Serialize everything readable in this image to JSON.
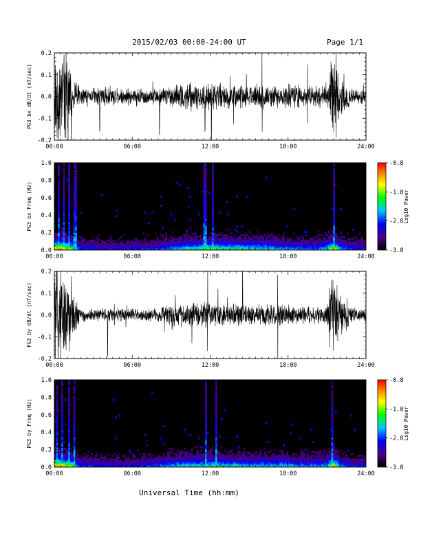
{
  "header": {
    "title": "2015/02/03  00:00-24:00 UT",
    "page": "Page 1/1"
  },
  "footer": {
    "xlabel": "Universal Time (hh:mm)"
  },
  "chart_data": [
    {
      "type": "line",
      "ylabel": "PG3 bx dB/dt (nT/sec)",
      "ylim": [
        -0.2,
        0.2
      ],
      "y_ticks": [
        "-0.2",
        "-0.1",
        "0.0",
        "0.1",
        "0.2"
      ],
      "xlim": [
        "00:00",
        "24:00"
      ],
      "x_ticks": [
        "00:00",
        "06:00",
        "12:00",
        "18:00",
        "24:00"
      ],
      "envelope": {
        "t_hours": [
          0,
          0.5,
          1,
          1.5,
          2,
          3,
          4,
          5,
          6,
          7,
          8,
          9,
          10,
          11,
          12,
          13,
          14,
          15,
          16,
          17,
          18,
          19,
          20,
          21,
          21.5,
          22,
          23,
          24
        ],
        "amplitude": [
          0.2,
          0.2,
          0.2,
          0.08,
          0.04,
          0.04,
          0.05,
          0.04,
          0.04,
          0.04,
          0.04,
          0.05,
          0.07,
          0.06,
          0.07,
          0.06,
          0.06,
          0.05,
          0.05,
          0.05,
          0.06,
          0.05,
          0.05,
          0.06,
          0.2,
          0.1,
          0.04,
          0.03
        ]
      },
      "spikes_t_hours": [
        0.3,
        0.6,
        0.9,
        1.2,
        3.5,
        8.1,
        11.6,
        12.1,
        13.8,
        16.0,
        19.5,
        21.3,
        21.7
      ]
    },
    {
      "type": "heatmap",
      "ylabel": "PG3 bx Freq (Hz)",
      "ylim": [
        0.0,
        1.0
      ],
      "y_ticks": [
        "0.0",
        "0.2",
        "0.4",
        "0.6",
        "0.8",
        "1.0"
      ],
      "xlim": [
        "00:00",
        "24:00"
      ],
      "x_ticks": [
        "00:00",
        "06:00",
        "12:00",
        "18:00",
        "24:00"
      ],
      "colorbar": {
        "label": "Log10 Power",
        "range": [
          -3.8,
          -0.8
        ],
        "ticks": [
          "-0.8",
          "-1.8",
          "-2.8",
          "-3.8"
        ]
      },
      "activity_profile": {
        "t_hours": [
          0,
          0.5,
          1,
          1.5,
          2,
          4,
          6,
          8,
          9,
          10,
          11,
          12,
          13,
          14,
          15,
          16,
          17,
          18,
          19,
          20,
          21,
          21.5,
          22,
          23,
          24
        ],
        "level": [
          0.9,
          0.9,
          0.8,
          0.6,
          0.35,
          0.3,
          0.3,
          0.35,
          0.45,
          0.55,
          0.55,
          0.7,
          0.6,
          0.6,
          0.55,
          0.55,
          0.5,
          0.45,
          0.45,
          0.4,
          0.5,
          0.9,
          0.45,
          0.35,
          0.3
        ]
      },
      "vertical_streaks_t_hours": [
        0.3,
        0.7,
        1.1,
        1.6,
        11.6,
        12.2,
        21.5
      ]
    },
    {
      "type": "line",
      "ylabel": "PG3 by dB/dt (nT/sec)",
      "ylim": [
        -0.2,
        0.2
      ],
      "y_ticks": [
        "-0.2",
        "-0.1",
        "0.0",
        "0.1",
        "0.2"
      ],
      "xlim": [
        "00:00",
        "24:00"
      ],
      "x_ticks": [
        "00:00",
        "06:00",
        "12:00",
        "18:00",
        "24:00"
      ],
      "envelope": {
        "t_hours": [
          0,
          0.5,
          1,
          1.5,
          2,
          3,
          4,
          5,
          6,
          7,
          8,
          9,
          10,
          11,
          12,
          13,
          14,
          15,
          16,
          17,
          18,
          19,
          20,
          21,
          21.5,
          22,
          23,
          24
        ],
        "amplitude": [
          0.2,
          0.2,
          0.2,
          0.1,
          0.03,
          0.03,
          0.03,
          0.03,
          0.03,
          0.03,
          0.035,
          0.05,
          0.06,
          0.06,
          0.06,
          0.05,
          0.05,
          0.05,
          0.05,
          0.05,
          0.05,
          0.04,
          0.04,
          0.05,
          0.2,
          0.12,
          0.03,
          0.03
        ]
      },
      "spikes_t_hours": [
        0.2,
        0.5,
        0.9,
        1.3,
        4.1,
        11.8,
        12.6,
        14.5,
        17.2,
        21.2,
        21.6
      ]
    },
    {
      "type": "heatmap",
      "ylabel": "PG3 by Freq (Hz)",
      "ylim": [
        0.0,
        1.0
      ],
      "y_ticks": [
        "0.0",
        "0.2",
        "0.4",
        "0.6",
        "0.8",
        "1.0"
      ],
      "xlim": [
        "00:00",
        "24:00"
      ],
      "x_ticks": [
        "00:00",
        "06:00",
        "12:00",
        "18:00",
        "24:00"
      ],
      "colorbar": {
        "label": "Log10 Power",
        "range": [
          -3.8,
          -0.8
        ],
        "ticks": [
          "-0.8",
          "-1.8",
          "-2.8",
          "-3.8"
        ]
      },
      "activity_profile": {
        "t_hours": [
          0,
          0.5,
          1,
          1.5,
          2,
          4,
          6,
          8,
          9,
          10,
          11,
          12,
          13,
          14,
          15,
          16,
          17,
          18,
          19,
          20,
          21,
          21.5,
          22,
          23,
          24
        ],
        "level": [
          0.95,
          0.9,
          0.8,
          0.65,
          0.35,
          0.3,
          0.3,
          0.4,
          0.5,
          0.55,
          0.55,
          0.6,
          0.55,
          0.55,
          0.5,
          0.5,
          0.5,
          0.5,
          0.45,
          0.45,
          0.5,
          0.9,
          0.45,
          0.35,
          0.3
        ]
      },
      "vertical_streaks_t_hours": [
        0.2,
        0.6,
        1.1,
        1.5,
        11.7,
        12.5,
        21.4
      ]
    }
  ]
}
